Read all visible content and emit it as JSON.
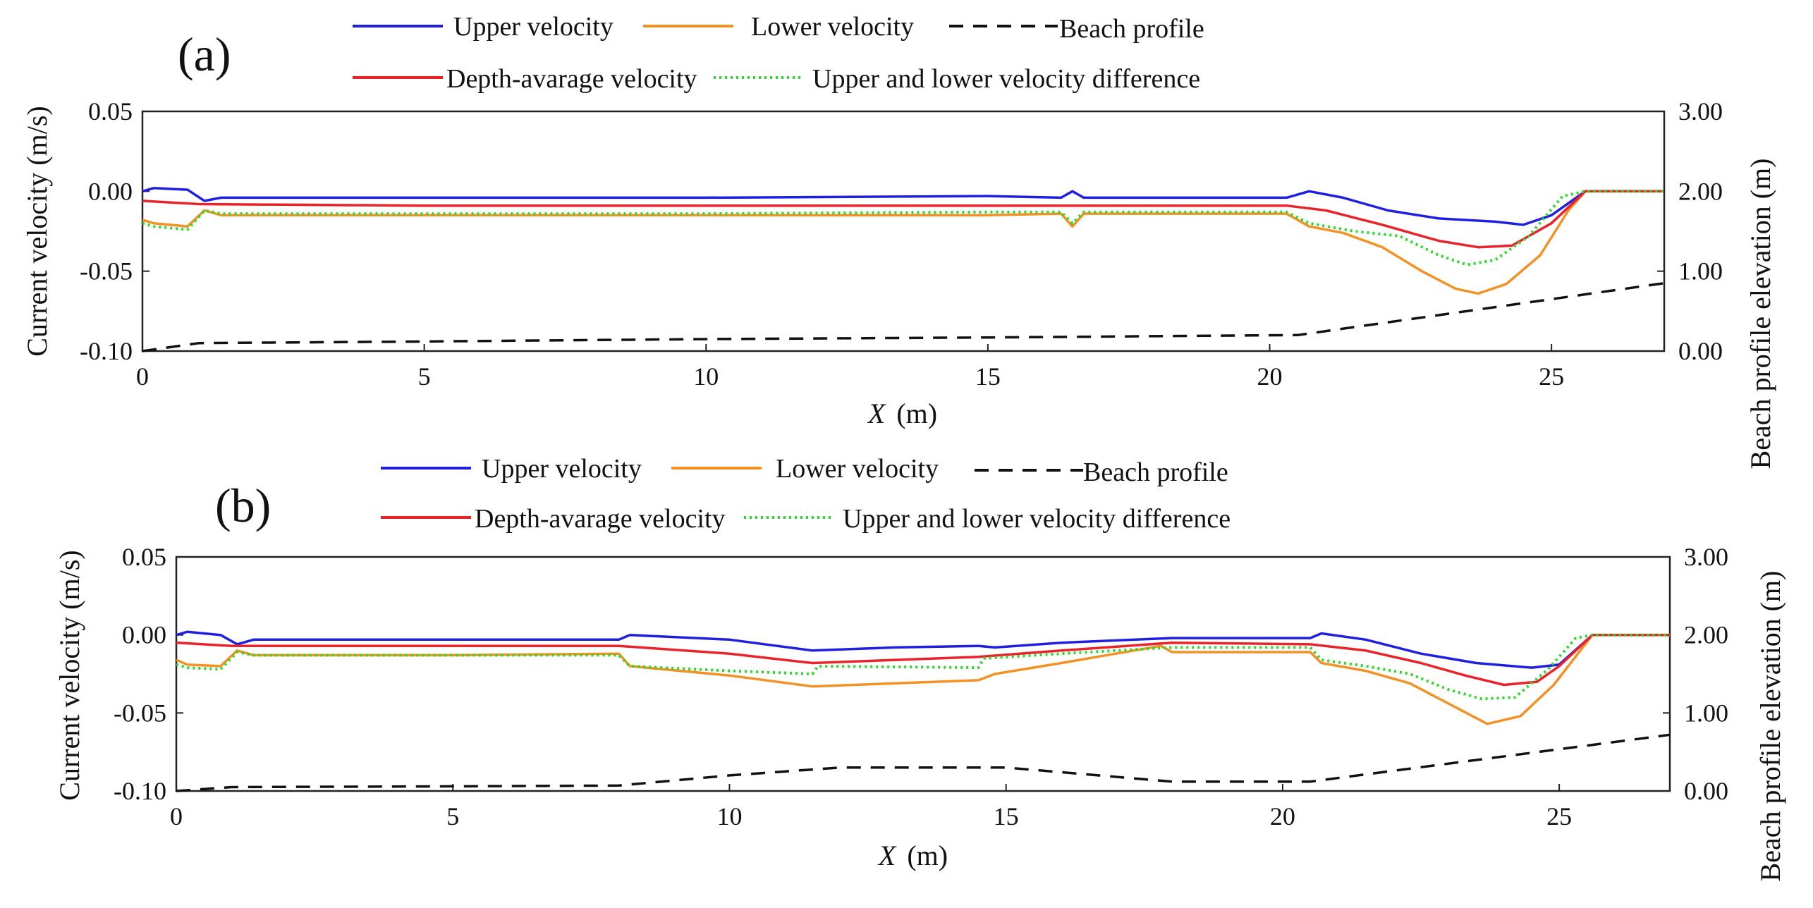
{
  "chart_data": [
    {
      "type": "line",
      "panel_label": "(a)",
      "xlabel_var": "X",
      "xlabel_unit": "(m)",
      "ylabel_left": "Current velocity (m/s)",
      "ylabel_right": "Beach profile elevation (m)",
      "xlim": [
        0,
        27
      ],
      "ylim_left": [
        -0.1,
        0.05
      ],
      "ylim_right": [
        0,
        3
      ],
      "x_ticks": [
        "0",
        "5",
        "10",
        "15",
        "20",
        "25"
      ],
      "x_tick_values": [
        0,
        5,
        10,
        15,
        20,
        25
      ],
      "y_left_ticks": [
        "0.05",
        "0.00",
        "-0.05",
        "-0.10"
      ],
      "y_left_tick_values": [
        0.05,
        0.0,
        -0.05,
        -0.1
      ],
      "y_right_ticks": [
        "3.00",
        "2.00",
        "1.00",
        "0.00"
      ],
      "y_right_tick_values": [
        3,
        2,
        1,
        0
      ],
      "legend": {
        "upper": "Upper velocity",
        "lower": "Lower velocity",
        "beach": "Beach profile",
        "depth": "Depth-avarage velocity",
        "diff": "Upper and lower velocity difference"
      },
      "series": [
        {
          "name": "Upper velocity",
          "color": "#1f1fe0",
          "dash": "solid",
          "axis": "left",
          "x": [
            0,
            0.2,
            0.8,
            1.1,
            1.4,
            5,
            10,
            15,
            16.3,
            16.5,
            16.7,
            20.3,
            20.7,
            21.3,
            22.1,
            23.0,
            24.0,
            24.5,
            25.0,
            25.6,
            27
          ],
          "y": [
            0.0,
            0.002,
            0.001,
            -0.006,
            -0.004,
            -0.004,
            -0.004,
            -0.003,
            -0.004,
            0.0,
            -0.004,
            -0.004,
            0.0,
            -0.004,
            -0.012,
            -0.017,
            -0.019,
            -0.021,
            -0.015,
            0.0,
            0.0
          ]
        },
        {
          "name": "Lower velocity",
          "color": "#f39125",
          "dash": "solid",
          "axis": "left",
          "x": [
            0,
            0.2,
            0.8,
            1.1,
            1.4,
            5,
            10,
            15,
            16.3,
            16.5,
            16.7,
            20.3,
            20.7,
            21.3,
            22.0,
            22.7,
            23.3,
            23.7,
            24.2,
            24.8,
            25.3,
            25.6,
            27
          ],
          "y": [
            -0.018,
            -0.02,
            -0.022,
            -0.012,
            -0.015,
            -0.015,
            -0.015,
            -0.015,
            -0.014,
            -0.022,
            -0.014,
            -0.014,
            -0.022,
            -0.026,
            -0.035,
            -0.05,
            -0.061,
            -0.064,
            -0.058,
            -0.04,
            -0.012,
            0.0,
            0.0
          ]
        },
        {
          "name": "Depth-avarage velocity",
          "color": "#e8232a",
          "dash": "solid",
          "axis": "left",
          "x": [
            0,
            1,
            5,
            10,
            15,
            20.3,
            21.0,
            22.0,
            23.0,
            23.7,
            24.3,
            25.0,
            25.6,
            27
          ],
          "y": [
            -0.006,
            -0.008,
            -0.009,
            -0.009,
            -0.009,
            -0.009,
            -0.012,
            -0.021,
            -0.031,
            -0.035,
            -0.034,
            -0.02,
            0.0,
            0.0
          ]
        },
        {
          "name": "Upper and lower velocity difference",
          "color": "#2bd92b",
          "dash": "dotted",
          "axis": "left",
          "x": [
            0,
            0.2,
            0.8,
            1.1,
            1.4,
            5,
            10,
            15,
            16.3,
            16.5,
            16.7,
            20.3,
            20.7,
            21.5,
            22.3,
            23.0,
            23.5,
            24.0,
            24.6,
            25.2,
            25.6,
            27
          ],
          "y": [
            -0.02,
            -0.022,
            -0.024,
            -0.012,
            -0.014,
            -0.014,
            -0.014,
            -0.013,
            -0.013,
            -0.02,
            -0.013,
            -0.013,
            -0.02,
            -0.025,
            -0.028,
            -0.04,
            -0.046,
            -0.043,
            -0.028,
            -0.003,
            0.0,
            0.0
          ]
        },
        {
          "name": "Beach profile",
          "color": "#111111",
          "dash": "dashed",
          "axis": "right",
          "x": [
            0,
            1,
            5,
            10,
            15,
            20.5,
            27
          ],
          "y": [
            0.0,
            0.1,
            0.12,
            0.15,
            0.17,
            0.2,
            0.85
          ]
        }
      ]
    },
    {
      "type": "line",
      "panel_label": "(b)",
      "xlabel_var": "X",
      "xlabel_unit": "(m)",
      "ylabel_left": "Current velocity (m/s)",
      "ylabel_right": "Beach profile elevation (m)",
      "xlim": [
        0,
        27
      ],
      "ylim_left": [
        -0.1,
        0.05
      ],
      "ylim_right": [
        0,
        3
      ],
      "x_ticks": [
        "0",
        "5",
        "10",
        "15",
        "20",
        "25"
      ],
      "x_tick_values": [
        0,
        5,
        10,
        15,
        20,
        25
      ],
      "y_left_ticks": [
        "0.05",
        "0.00",
        "-0.05",
        "-0.10"
      ],
      "y_left_tick_values": [
        0.05,
        0.0,
        -0.05,
        -0.1
      ],
      "y_right_ticks": [
        "3.00",
        "2.00",
        "1.00",
        "0.00"
      ],
      "y_right_tick_values": [
        3,
        2,
        1,
        0
      ],
      "legend": {
        "upper": "Upper velocity",
        "lower": "Lower velocity",
        "beach": "Beach profile",
        "depth": "Depth-avarage velocity",
        "diff": "Upper and lower velocity difference"
      },
      "series": [
        {
          "name": "Upper velocity",
          "color": "#1f1fe0",
          "dash": "solid",
          "axis": "left",
          "x": [
            0,
            0.2,
            0.8,
            1.1,
            1.4,
            5,
            8,
            8.2,
            10,
            11.5,
            13,
            14.5,
            14.8,
            16,
            18,
            20.5,
            20.7,
            21.5,
            22.5,
            23.5,
            24.5,
            25.0,
            25.6,
            27
          ],
          "y": [
            0.0,
            0.002,
            0.0,
            -0.006,
            -0.003,
            -0.003,
            -0.003,
            0.0,
            -0.003,
            -0.01,
            -0.008,
            -0.007,
            -0.008,
            -0.005,
            -0.002,
            -0.002,
            0.001,
            -0.003,
            -0.012,
            -0.018,
            -0.021,
            -0.019,
            0.0,
            0.0
          ]
        },
        {
          "name": "Lower velocity",
          "color": "#f39125",
          "dash": "solid",
          "axis": "left",
          "x": [
            0,
            0.2,
            0.8,
            1.1,
            1.4,
            5,
            8,
            8.2,
            10,
            11.5,
            13,
            14.5,
            14.8,
            16,
            17.8,
            18,
            20.5,
            20.7,
            21.5,
            22.3,
            23.0,
            23.7,
            24.3,
            24.9,
            25.6,
            27
          ],
          "y": [
            -0.016,
            -0.019,
            -0.02,
            -0.01,
            -0.013,
            -0.013,
            -0.012,
            -0.02,
            -0.026,
            -0.033,
            -0.031,
            -0.029,
            -0.025,
            -0.018,
            -0.007,
            -0.011,
            -0.011,
            -0.018,
            -0.023,
            -0.031,
            -0.044,
            -0.057,
            -0.052,
            -0.032,
            0.0,
            0.0
          ]
        },
        {
          "name": "Depth-avarage velocity",
          "color": "#e8232a",
          "dash": "solid",
          "axis": "left",
          "x": [
            0,
            1,
            5,
            8,
            10,
            11.5,
            13,
            14.5,
            16,
            18,
            20.5,
            21.5,
            22.5,
            23.3,
            24.0,
            24.6,
            25.0,
            25.6,
            27
          ],
          "y": [
            -0.005,
            -0.007,
            -0.007,
            -0.007,
            -0.012,
            -0.018,
            -0.016,
            -0.014,
            -0.01,
            -0.005,
            -0.006,
            -0.01,
            -0.018,
            -0.026,
            -0.032,
            -0.03,
            -0.02,
            0.0,
            0.0
          ]
        },
        {
          "name": "Upper and lower velocity difference",
          "color": "#2bd92b",
          "dash": "dotted",
          "axis": "left",
          "x": [
            0,
            0.2,
            0.8,
            1.1,
            1.4,
            5,
            8,
            8.2,
            10,
            11.5,
            11.6,
            14.5,
            14.6,
            16,
            18,
            20.5,
            20.7,
            21.5,
            22.3,
            23.0,
            23.6,
            24.2,
            24.8,
            25.3,
            25.6,
            27
          ],
          "y": [
            -0.019,
            -0.021,
            -0.022,
            -0.011,
            -0.013,
            -0.013,
            -0.013,
            -0.02,
            -0.023,
            -0.025,
            -0.02,
            -0.021,
            -0.015,
            -0.012,
            -0.008,
            -0.008,
            -0.016,
            -0.02,
            -0.025,
            -0.035,
            -0.041,
            -0.04,
            -0.022,
            -0.002,
            0.0,
            0.0
          ]
        },
        {
          "name": "Beach profile",
          "color": "#111111",
          "dash": "dashed",
          "axis": "right",
          "x": [
            0,
            1,
            5,
            8,
            10,
            12,
            15,
            18,
            20.5,
            27
          ],
          "y": [
            0.0,
            0.05,
            0.06,
            0.07,
            0.2,
            0.3,
            0.3,
            0.12,
            0.12,
            0.72
          ]
        }
      ]
    }
  ]
}
